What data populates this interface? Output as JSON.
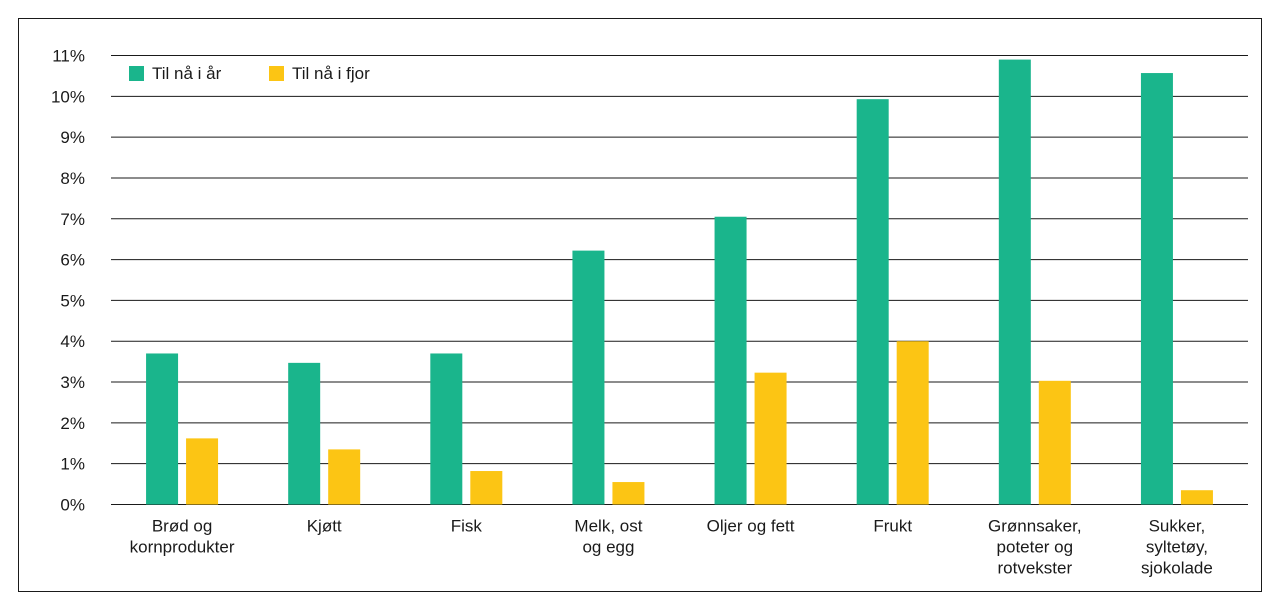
{
  "chart_data": {
    "type": "bar",
    "categories": [
      [
        "Brød og",
        "kornprodukter"
      ],
      [
        "Kjøtt"
      ],
      [
        "Fisk"
      ],
      [
        "Melk, ost",
        "og egg"
      ],
      [
        "Oljer og fett"
      ],
      [
        "Frukt"
      ],
      [
        "Grønnsaker,",
        "poteter og",
        "rotvekster"
      ],
      [
        "Sukker,",
        "syltetøy,",
        "sjokolade"
      ]
    ],
    "series": [
      {
        "name": "Til nå i år",
        "color": "#1ab58c",
        "values": [
          3.7,
          3.47,
          3.7,
          6.22,
          7.05,
          9.93,
          10.9,
          10.57
        ]
      },
      {
        "name": "Til nå i fjor",
        "color": "#fcc514",
        "values": [
          1.62,
          1.35,
          0.82,
          0.55,
          3.23,
          4.0,
          3.03,
          0.35
        ]
      }
    ],
    "yticks": [
      "0%",
      "1%",
      "2%",
      "3%",
      "4%",
      "5%",
      "6%",
      "7%",
      "8%",
      "9%",
      "10%",
      "11%"
    ],
    "ylim": [
      0,
      11
    ],
    "grid": true,
    "legend": "top-left"
  }
}
